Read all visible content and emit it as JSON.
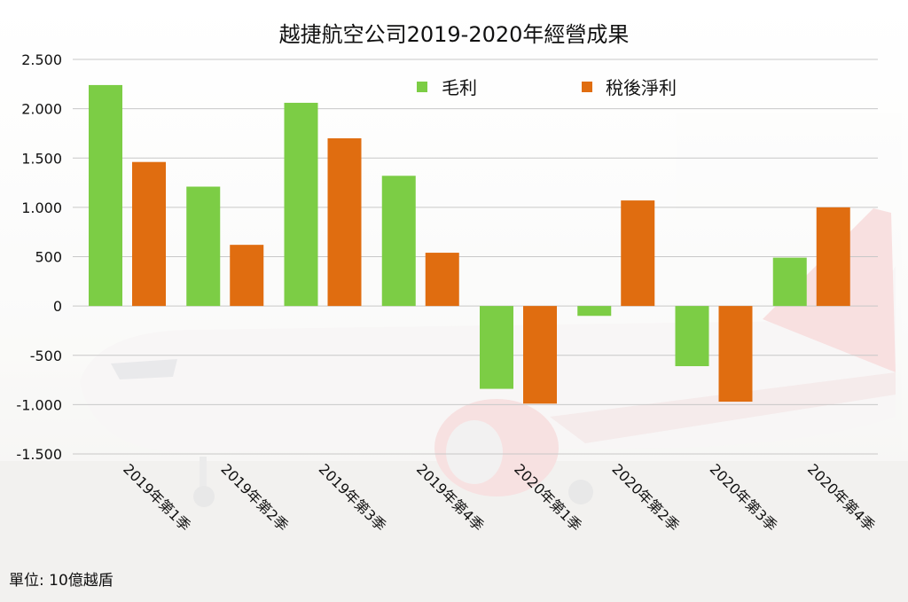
{
  "chart_data": {
    "type": "bar",
    "title": "越捷航空公司2019-2020年經營成果",
    "unit_note": "單位: 10億越盾",
    "categories": [
      "2019年第1季",
      "2019年第2季",
      "2019年第3季",
      "2019年第4季",
      "2020年第1季",
      "2020年第2季",
      "2020年第3季",
      "2020年第4季"
    ],
    "series": [
      {
        "name": "毛利",
        "color": "#7ccd45",
        "values": [
          2240,
          1210,
          2060,
          1320,
          -840,
          -100,
          -610,
          490
        ]
      },
      {
        "name": "稅後淨利",
        "color": "#e06d10",
        "values": [
          1460,
          620,
          1700,
          540,
          -990,
          1070,
          -970,
          1000
        ]
      }
    ],
    "yticks": [
      2500,
      2000,
      1500,
      1000,
      500,
      0,
      -500,
      -1000,
      -1500
    ],
    "ytick_labels": [
      "2.500",
      "2.000",
      "1.500",
      "1.000",
      "500",
      "0",
      "-500",
      "-1.000",
      "-1.500"
    ],
    "ylim": [
      -1500,
      2500
    ],
    "grid": true,
    "legend_position": "top-center"
  }
}
